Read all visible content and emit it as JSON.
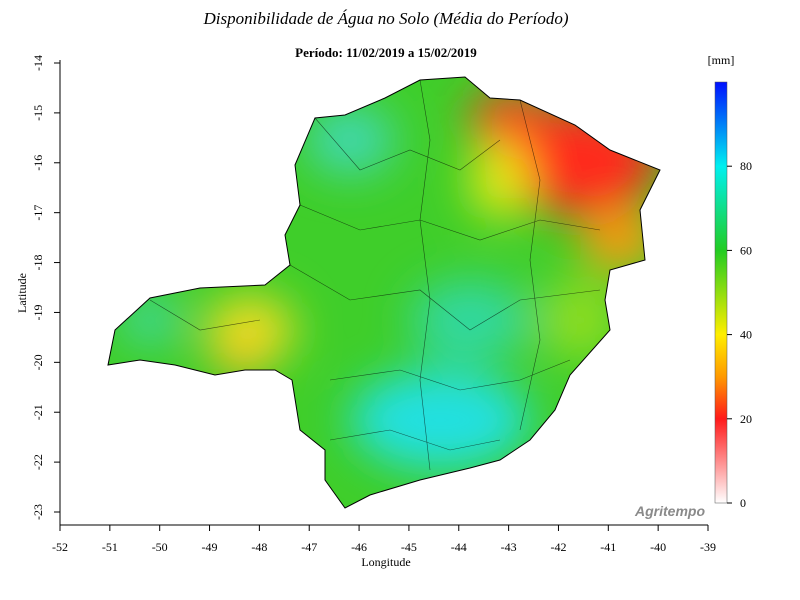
{
  "title": "Disponibilidade de Água no Solo (Média do Período)",
  "subtitle": "Período: 11/02/2019 a 15/02/2019",
  "x_axis": {
    "label": "Longitude",
    "lim": [
      -52,
      -39
    ],
    "ticks": [
      -52,
      -51,
      -50,
      -49,
      -48,
      -47,
      -46,
      -45,
      -44,
      -43,
      -42,
      -41,
      -40,
      -39
    ]
  },
  "y_axis": {
    "label": "Latitude",
    "lim": [
      -14,
      -23
    ],
    "ticks": [
      -14,
      -15,
      -16,
      -17,
      -18,
      -19,
      -20,
      -21,
      -22,
      -23
    ]
  },
  "colorbar": {
    "unit": "[mm]",
    "lim": [
      0,
      100
    ],
    "ticks": [
      0,
      20,
      40,
      60,
      80
    ]
  },
  "credit": "Agritempo"
}
